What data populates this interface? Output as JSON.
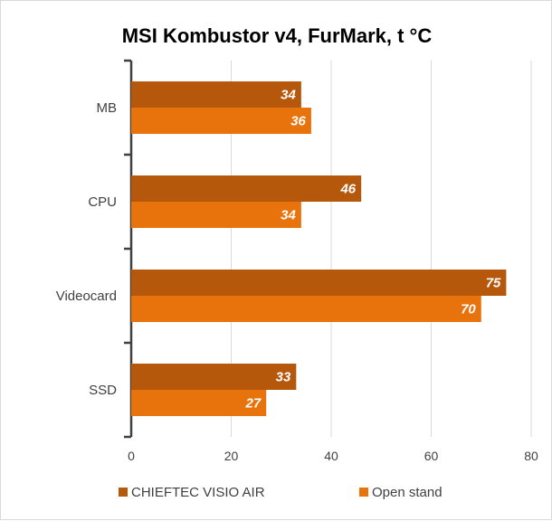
{
  "chart_data": {
    "type": "bar",
    "orientation": "horizontal",
    "title": "MSI Kombustor v4, FurMark, t °C",
    "categories": [
      "MB",
      "CPU",
      "Videocard",
      "SSD"
    ],
    "series": [
      {
        "name": "CHIEFTEC VISIO AIR",
        "color": "#b5580c",
        "values": [
          34,
          46,
          75,
          33
        ]
      },
      {
        "name": "Open stand",
        "color": "#e8720c",
        "values": [
          36,
          34,
          70,
          27
        ]
      }
    ],
    "xlim": [
      0,
      80
    ],
    "xticks": [
      0,
      20,
      40,
      60,
      80
    ],
    "grid": true,
    "legend_position": "bottom"
  }
}
